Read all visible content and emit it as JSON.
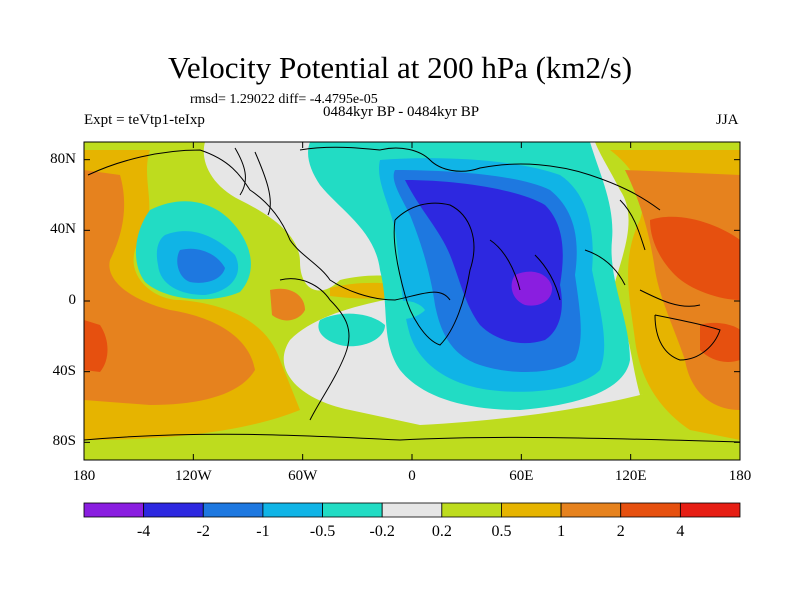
{
  "title": "Velocity Potential at 200 hPa (km2/s)",
  "stats": "rmsd= 1.29022 diff= -4.4795e-05",
  "experiment": "Expt = teVtp1-teIxp",
  "period": "0484kyr BP - 0484kyr BP",
  "season": "JJA",
  "x_ticks": [
    {
      "label": "180",
      "lon": -180
    },
    {
      "label": "120W",
      "lon": -120
    },
    {
      "label": "60W",
      "lon": -60
    },
    {
      "label": "0",
      "lon": 0
    },
    {
      "label": "60E",
      "lon": 60
    },
    {
      "label": "120E",
      "lon": 120
    },
    {
      "label": "180",
      "lon": 180
    }
  ],
  "y_ticks": [
    {
      "label": "80N",
      "lat": 80
    },
    {
      "label": "40N",
      "lat": 40
    },
    {
      "label": "0",
      "lat": 0
    },
    {
      "label": "40S",
      "lat": -40
    },
    {
      "label": "80S",
      "lat": -80
    }
  ],
  "colorbar": {
    "colors": [
      "#8a1ee0",
      "#2d28e0",
      "#1e78e0",
      "#10b4e6",
      "#22dcc4",
      "#e6e6e6",
      "#bedc1e",
      "#e6b400",
      "#e6821e",
      "#e6500f",
      "#e61e14"
    ],
    "labels": [
      "-4",
      "-2",
      "-1",
      "-0.5",
      "-0.2",
      "0.2",
      "0.5",
      "1",
      "2",
      "4"
    ]
  }
}
